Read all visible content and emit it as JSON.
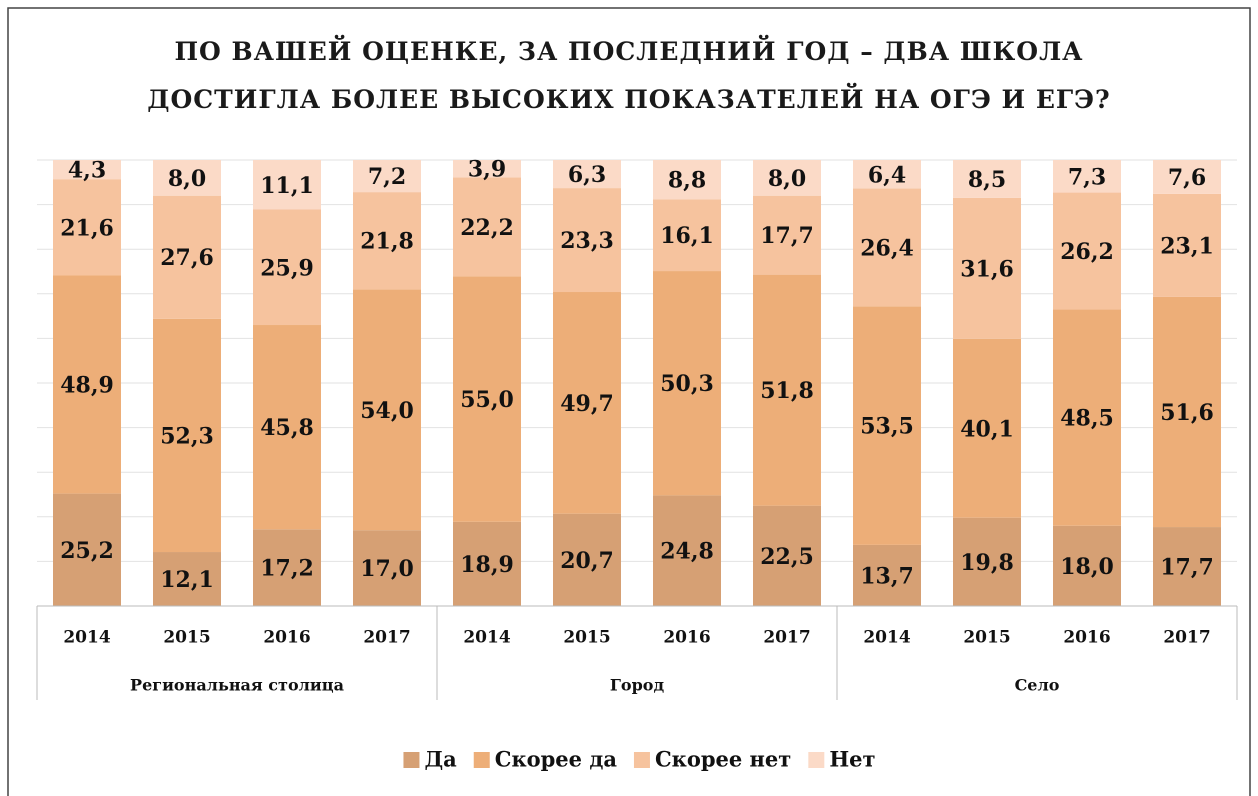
{
  "chart_data": {
    "type": "stacked_bar",
    "title": "ПО ВАШЕЙ ОЦЕНКЕ, ЗА ПОСЛЕДНИЙ ГОД – ДВА ШКОЛА ДОСТИГЛА БОЛЕЕ ВЫСОКИХ ПОКАЗАТЕЛЕЙ НА ОГЭ И ЕГЭ?",
    "categories": [
      "2014",
      "2015",
      "2016",
      "2017",
      "2014",
      "2015",
      "2016",
      "2017",
      "2014",
      "2015",
      "2016",
      "2017"
    ],
    "groups": [
      "Региональная столица",
      "Город",
      "Село"
    ],
    "series": [
      {
        "name": "Да",
        "color": "#d6a074",
        "values": [
          25.2,
          12.1,
          17.2,
          17.0,
          18.9,
          20.7,
          24.8,
          22.5,
          13.7,
          19.8,
          18.0,
          17.7
        ],
        "value_labels": [
          "25,2",
          "12,1",
          "17,2",
          "17,0",
          "18,9",
          "20,7",
          "24,8",
          "22,5",
          "13,7",
          "19,8",
          "18,0",
          "17,7"
        ]
      },
      {
        "name": "Скорее да",
        "color": "#edae78",
        "values": [
          48.9,
          52.3,
          45.8,
          54.0,
          55.0,
          49.7,
          50.3,
          51.8,
          53.5,
          40.1,
          48.5,
          51.6
        ],
        "value_labels": [
          "48,9",
          "52,3",
          "45,8",
          "54,0",
          "55,0",
          "49,7",
          "50,3",
          "51,8",
          "53,5",
          "40,1",
          "48,5",
          "51,6"
        ]
      },
      {
        "name": "Скорее нет",
        "color": "#f6c39e",
        "values": [
          21.6,
          27.6,
          25.9,
          21.8,
          22.2,
          23.3,
          16.1,
          17.7,
          26.4,
          31.6,
          26.2,
          23.1
        ],
        "value_labels": [
          "21,6",
          "27,6",
          "25,9",
          "21,8",
          "22,2",
          "23,3",
          "16,1",
          "17,7",
          "26,4",
          "31,6",
          "26,2",
          "23,1"
        ]
      },
      {
        "name": "Нет",
        "color": "#fbdac7",
        "values": [
          4.3,
          8.0,
          11.1,
          7.2,
          3.9,
          6.3,
          8.8,
          8.0,
          6.4,
          8.5,
          7.3,
          7.6
        ],
        "value_labels": [
          "4,3",
          "8,0",
          "11,1",
          "7,2",
          "3,9",
          "6,3",
          "8,8",
          "8,0",
          "6,4",
          "8,5",
          "7,3",
          "7,6"
        ]
      }
    ],
    "ylim": [
      0,
      100
    ],
    "yticks": [
      0,
      10,
      20,
      30,
      40,
      50,
      60,
      70,
      80,
      90,
      100
    ],
    "grid": true,
    "legend": "bottom"
  }
}
